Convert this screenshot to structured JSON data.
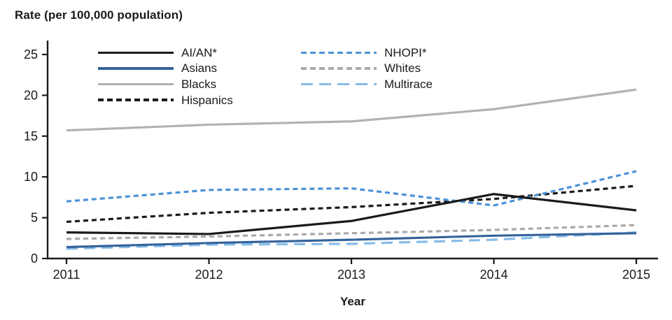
{
  "chart_data": {
    "type": "line",
    "title": "Rate (per 100,000 population)",
    "xlabel": "Year",
    "ylabel": "Rate (per 100,000 population)",
    "x": [
      2011,
      2012,
      2013,
      2014,
      2015
    ],
    "ylim": [
      0,
      26
    ],
    "yticks": [
      0,
      5,
      10,
      15,
      20,
      25
    ],
    "grid": false,
    "legend_position": "inside-top, two columns",
    "series": [
      {
        "name": "AI/AN*",
        "color": "#1a1a1a",
        "dash": "solid",
        "values": [
          3.2,
          3.0,
          4.6,
          7.9,
          5.9
        ]
      },
      {
        "name": "Asians",
        "color": "#35639b",
        "dash": "solid",
        "values": [
          1.4,
          1.9,
          2.3,
          2.8,
          3.1
        ]
      },
      {
        "name": "Blacks",
        "color": "#b2b2b2",
        "dash": "solid",
        "values": [
          15.7,
          16.4,
          16.8,
          18.3,
          20.7
        ]
      },
      {
        "name": "Hispanics",
        "color": "#1a1a1a",
        "dash": "dash",
        "values": [
          4.5,
          5.6,
          6.3,
          7.3,
          8.9
        ]
      },
      {
        "name": "NHOPI*",
        "color": "#4b92d8",
        "dash": "dash",
        "values": [
          7.0,
          8.4,
          8.6,
          6.5,
          10.7
        ]
      },
      {
        "name": "Whites",
        "color": "#a9a9a9",
        "dash": "dash",
        "values": [
          2.4,
          2.7,
          3.1,
          3.5,
          4.1
        ]
      },
      {
        "name": "Multirace",
        "color": "#86bce8",
        "dash": "longdash",
        "values": [
          1.2,
          1.7,
          1.8,
          2.3,
          3.2
        ]
      }
    ]
  }
}
